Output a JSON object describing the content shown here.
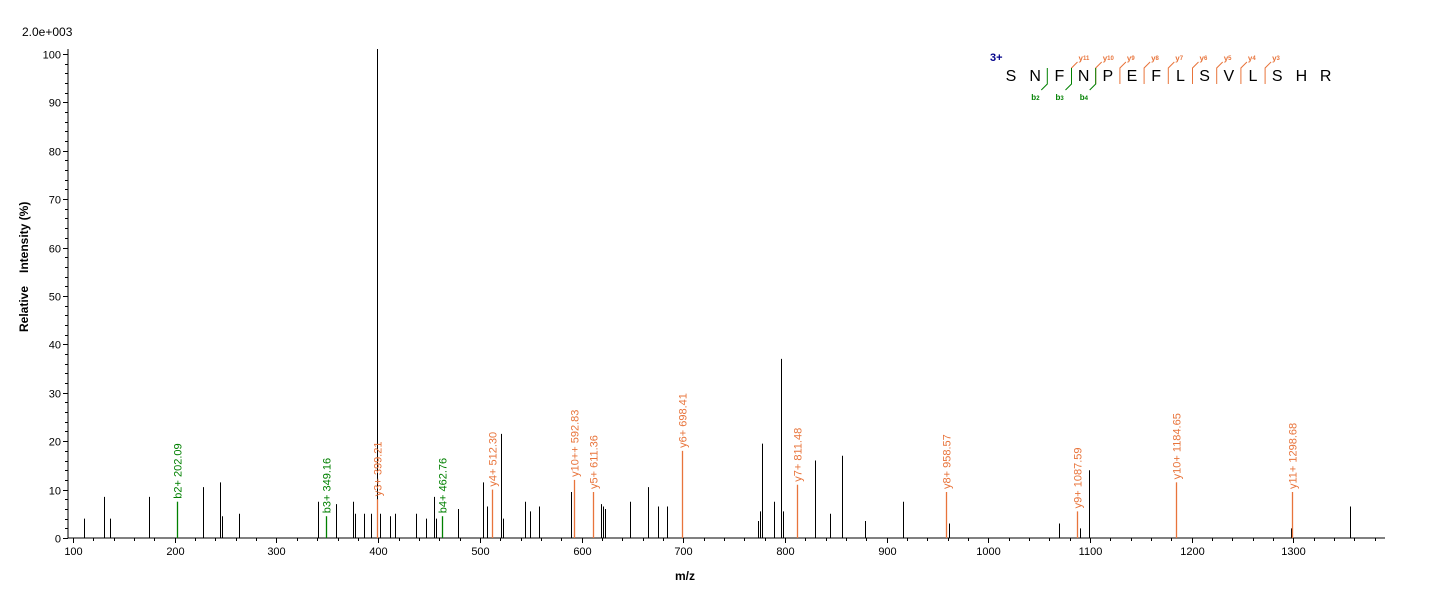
{
  "chart_data": {
    "type": "bar",
    "scale_label": "2.0e+003",
    "xlabel": "m/z",
    "ylabel_parts": [
      "Relative",
      "Intensity (%)"
    ],
    "xlim": [
      95,
      1390
    ],
    "ylim": [
      0,
      101
    ],
    "xticks": [
      100,
      200,
      300,
      400,
      500,
      600,
      700,
      800,
      900,
      1000,
      1100,
      1200,
      1300
    ],
    "yticks": [
      0,
      10,
      20,
      30,
      40,
      50,
      60,
      70,
      80,
      90,
      100
    ],
    "colors": {
      "unassigned": "#000000",
      "b_ion": "#008000",
      "y_ion": "#e8743b",
      "charge": "#00008b"
    },
    "peaks": [
      {
        "mz": 111,
        "i": 4
      },
      {
        "mz": 130,
        "i": 8.5
      },
      {
        "mz": 136,
        "i": 4
      },
      {
        "mz": 175,
        "i": 8.5
      },
      {
        "mz": 228,
        "i": 10.5
      },
      {
        "mz": 244,
        "i": 11.5
      },
      {
        "mz": 246,
        "i": 4.5
      },
      {
        "mz": 263,
        "i": 5
      },
      {
        "mz": 341,
        "i": 7.5
      },
      {
        "mz": 359,
        "i": 7
      },
      {
        "mz": 375,
        "i": 7.5
      },
      {
        "mz": 377,
        "i": 5
      },
      {
        "mz": 386,
        "i": 5
      },
      {
        "mz": 393,
        "i": 5
      },
      {
        "mz": 399,
        "i": 101
      },
      {
        "mz": 402,
        "i": 5
      },
      {
        "mz": 412,
        "i": 4.5
      },
      {
        "mz": 417,
        "i": 5
      },
      {
        "mz": 437,
        "i": 5
      },
      {
        "mz": 447,
        "i": 4
      },
      {
        "mz": 455,
        "i": 8.5
      },
      {
        "mz": 457,
        "i": 4
      },
      {
        "mz": 478,
        "i": 6
      },
      {
        "mz": 503,
        "i": 11.5
      },
      {
        "mz": 507,
        "i": 6.5
      },
      {
        "mz": 521,
        "i": 21.5
      },
      {
        "mz": 523,
        "i": 4
      },
      {
        "mz": 544,
        "i": 7.5
      },
      {
        "mz": 549,
        "i": 5.5
      },
      {
        "mz": 558,
        "i": 6.5
      },
      {
        "mz": 590,
        "i": 9.5
      },
      {
        "mz": 619,
        "i": 7
      },
      {
        "mz": 621,
        "i": 6.5
      },
      {
        "mz": 623,
        "i": 6
      },
      {
        "mz": 648,
        "i": 7.5
      },
      {
        "mz": 665,
        "i": 10.5
      },
      {
        "mz": 675,
        "i": 6.5
      },
      {
        "mz": 684,
        "i": 6.5
      },
      {
        "mz": 773,
        "i": 3.5
      },
      {
        "mz": 775,
        "i": 5.5
      },
      {
        "mz": 777,
        "i": 19.5
      },
      {
        "mz": 789,
        "i": 7.5
      },
      {
        "mz": 796,
        "i": 37
      },
      {
        "mz": 798,
        "i": 5.5
      },
      {
        "mz": 830,
        "i": 16
      },
      {
        "mz": 844,
        "i": 5
      },
      {
        "mz": 856,
        "i": 17
      },
      {
        "mz": 879,
        "i": 3.5
      },
      {
        "mz": 916,
        "i": 7.5
      },
      {
        "mz": 961,
        "i": 3
      },
      {
        "mz": 1069,
        "i": 3
      },
      {
        "mz": 1090,
        "i": 2
      },
      {
        "mz": 1099,
        "i": 14
      },
      {
        "mz": 1298,
        "i": 2
      },
      {
        "mz": 1356,
        "i": 6.5
      }
    ],
    "annotated_peaks": [
      {
        "mz": 202.09,
        "i": 7.5,
        "label": "b2+ 202.09",
        "ion": "b"
      },
      {
        "mz": 349.16,
        "i": 4.5,
        "label": "b3+ 349.16",
        "ion": "b"
      },
      {
        "mz": 399.21,
        "i": 8,
        "label": "y3+ 399.21",
        "ion": "y"
      },
      {
        "mz": 462.76,
        "i": 4.5,
        "label": "b4+ 462.76",
        "ion": "b"
      },
      {
        "mz": 512.3,
        "i": 10,
        "label": "y4+ 512.30",
        "ion": "y"
      },
      {
        "mz": 592.83,
        "i": 12,
        "label": "y10++ 592.83",
        "ion": "y"
      },
      {
        "mz": 611.36,
        "i": 9.5,
        "label": "y5+ 611.36",
        "ion": "y"
      },
      {
        "mz": 698.41,
        "i": 18,
        "label": "y6+ 698.41",
        "ion": "y"
      },
      {
        "mz": 811.48,
        "i": 11,
        "label": "y7+ 811.48",
        "ion": "y"
      },
      {
        "mz": 958.57,
        "i": 9.5,
        "label": "y8+ 958.57",
        "ion": "y"
      },
      {
        "mz": 1087.59,
        "i": 5.5,
        "label": "y9+ 1087.59",
        "ion": "y"
      },
      {
        "mz": 1184.65,
        "i": 11.5,
        "label": "y10+ 1184.65",
        "ion": "y"
      },
      {
        "mz": 1298.68,
        "i": 9.5,
        "label": "y11+ 1298.68",
        "ion": "y"
      }
    ],
    "peptide": {
      "charge": "3+",
      "sequence": [
        "S",
        "N",
        "F",
        "N",
        "P",
        "E",
        "F",
        "L",
        "S",
        "V",
        "L",
        "S",
        "H",
        "R"
      ],
      "b_ions": [
        {
          "after": 2,
          "label": "b",
          "num": "2"
        },
        {
          "after": 3,
          "label": "b",
          "num": "3"
        },
        {
          "after": 4,
          "label": "b",
          "num": "4"
        }
      ],
      "y_ions": [
        {
          "after": 3,
          "label": "y",
          "num": "11"
        },
        {
          "after": 4,
          "label": "y",
          "num": "10"
        },
        {
          "after": 5,
          "label": "y",
          "num": "9"
        },
        {
          "after": 6,
          "label": "y",
          "num": "8"
        },
        {
          "after": 7,
          "label": "y",
          "num": "7"
        },
        {
          "after": 8,
          "label": "y",
          "num": "6"
        },
        {
          "after": 9,
          "label": "y",
          "num": "5"
        },
        {
          "after": 10,
          "label": "y",
          "num": "4"
        },
        {
          "after": 11,
          "label": "y",
          "num": "3"
        }
      ]
    }
  }
}
